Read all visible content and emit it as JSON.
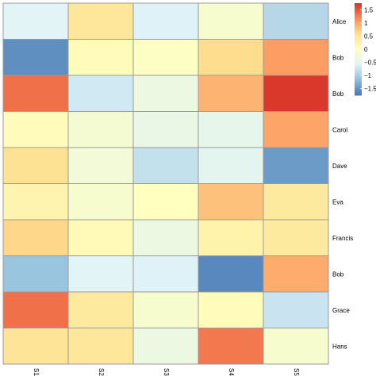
{
  "chart_data": {
    "type": "heatmap",
    "title": "",
    "xlabel": "",
    "ylabel": "",
    "columns": [
      "S1",
      "S2",
      "S3",
      "S4",
      "S5"
    ],
    "rows": [
      "Alice",
      "Bob",
      "Bob",
      "Carol",
      "Dave",
      "Eva",
      "Francis",
      "Bob",
      "Grace",
      "Hans"
    ],
    "values": [
      [
        -0.55,
        0.45,
        -0.6,
        -0.15,
        -0.9
      ],
      [
        -1.55,
        0.05,
        -0.05,
        0.6,
        1.05
      ],
      [
        1.35,
        -0.7,
        -0.35,
        0.9,
        1.7
      ],
      [
        0.05,
        -0.2,
        -0.4,
        -0.45,
        1.0
      ],
      [
        0.55,
        -0.25,
        -0.8,
        -0.5,
        -1.45
      ],
      [
        0.2,
        -0.15,
        0.0,
        0.8,
        0.4
      ],
      [
        0.65,
        0.1,
        -0.35,
        0.25,
        0.4
      ],
      [
        -1.1,
        -0.55,
        -0.6,
        -1.6,
        0.95
      ],
      [
        1.35,
        0.4,
        -0.15,
        0.05,
        -0.75
      ],
      [
        0.5,
        0.45,
        -0.35,
        1.3,
        -0.15
      ]
    ],
    "legend": {
      "position": "right",
      "ticks": [
        1.5,
        1,
        0.5,
        0,
        -0.5,
        -1,
        -1.5
      ],
      "tick_labels": [
        "1.5",
        "1",
        "0.5",
        "0",
        "−0.5",
        "−1",
        "−1.5"
      ],
      "range": [
        -1.75,
        1.75
      ]
    },
    "colormap": [
      "#4575b4",
      "#91bfdb",
      "#e0f3f8",
      "#ffffbf",
      "#fee090",
      "#fc8d59",
      "#d73027"
    ],
    "grid": true
  }
}
